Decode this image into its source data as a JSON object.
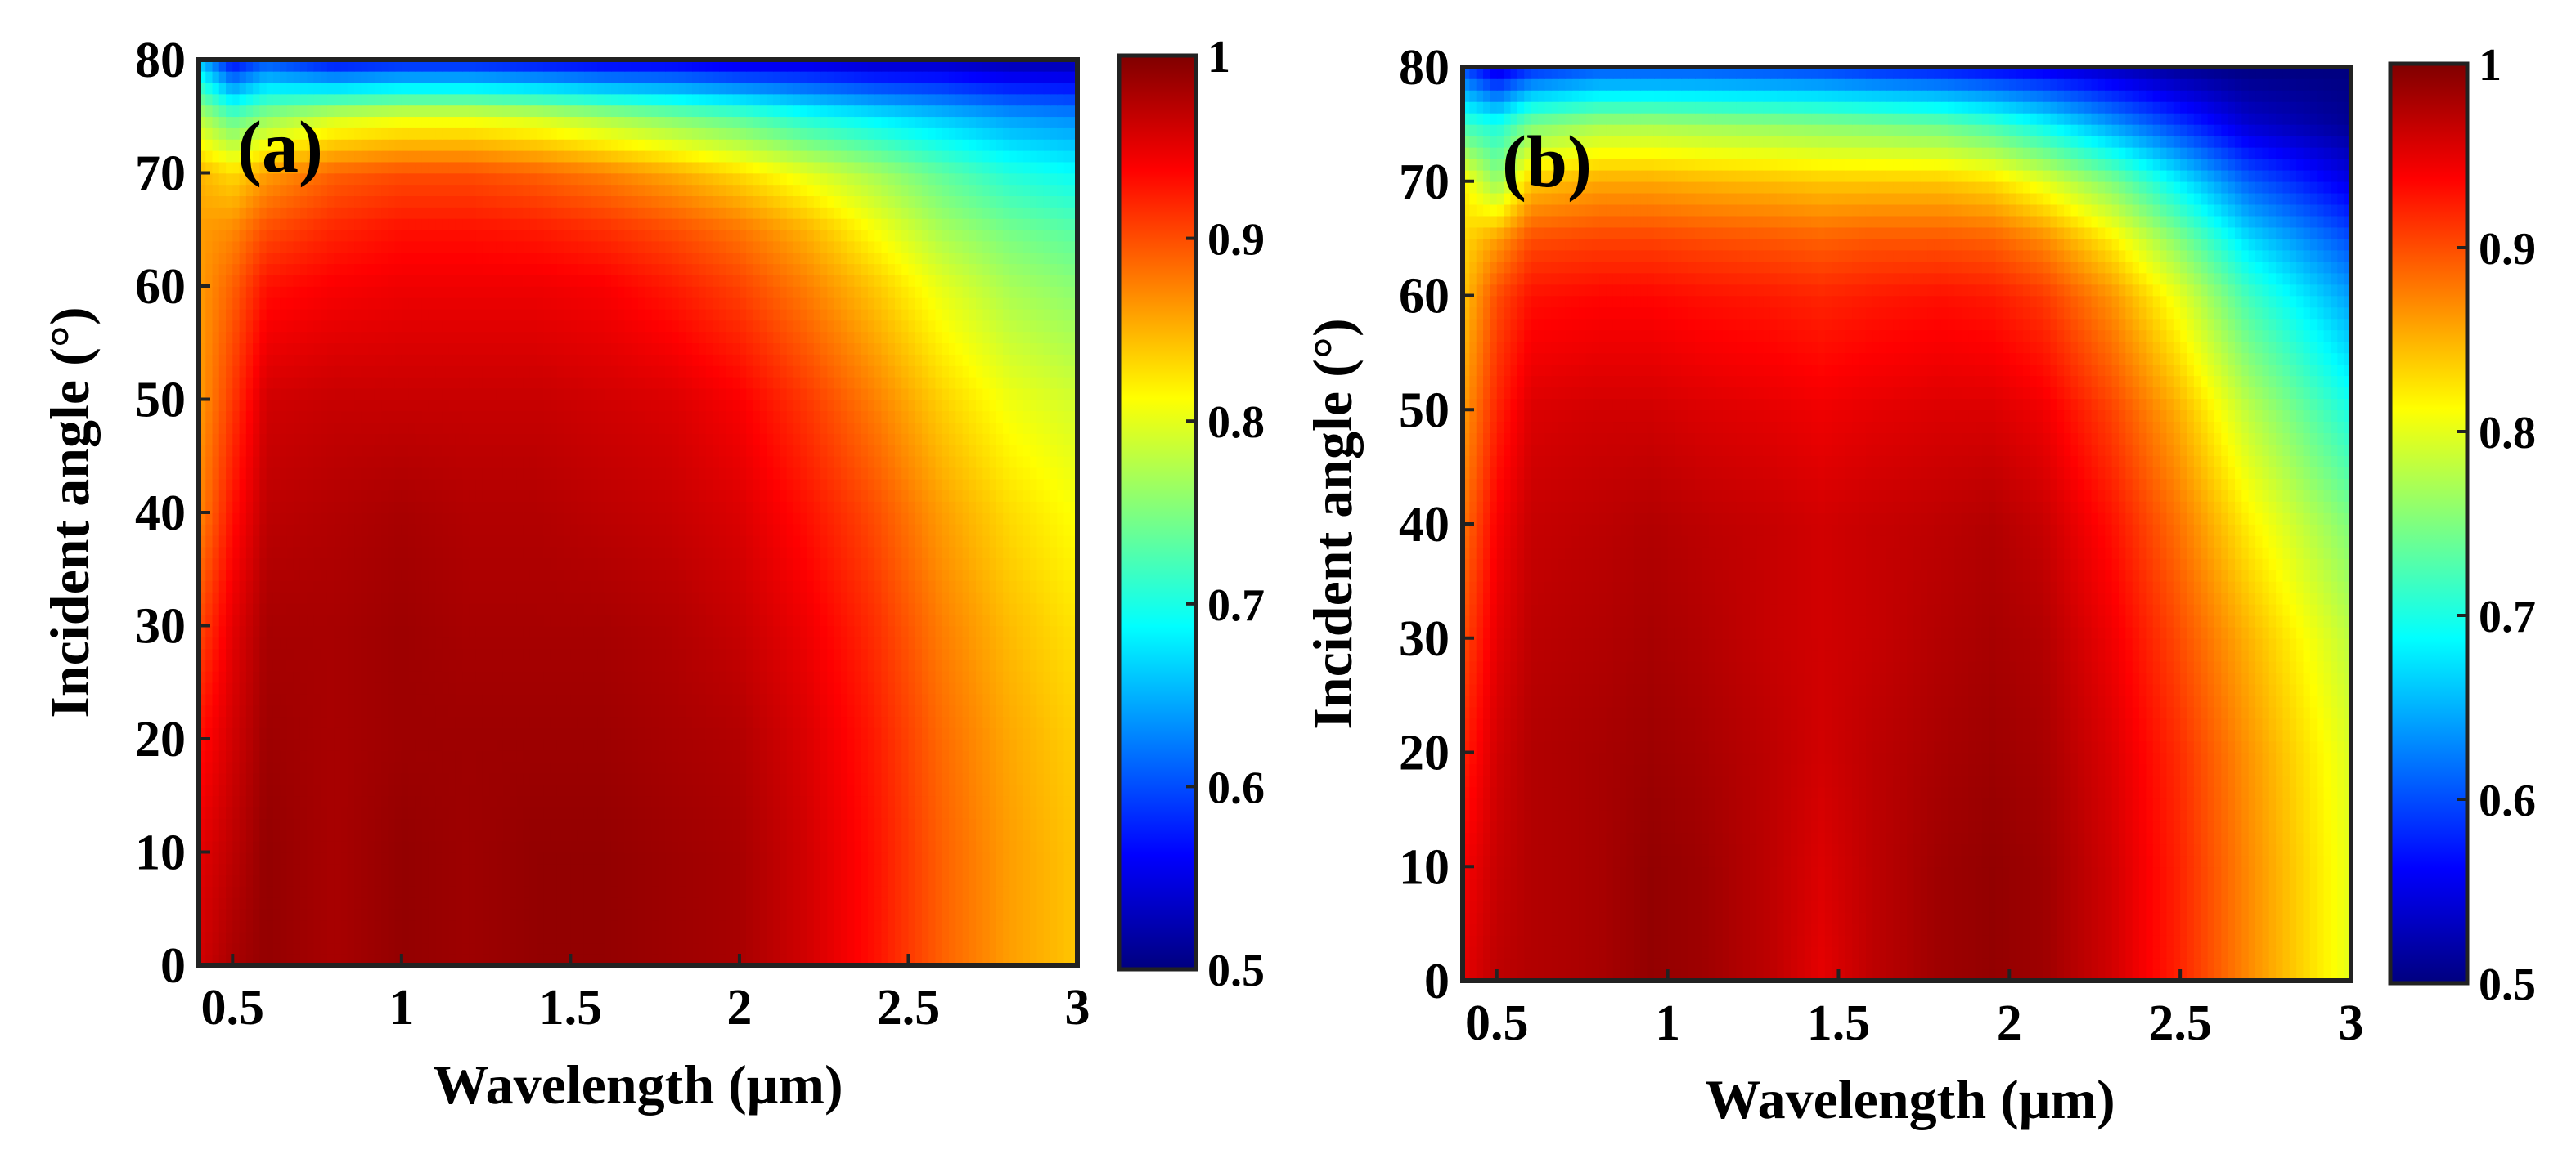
{
  "figure": {
    "colormap": [
      "#00007f",
      "#0000ff",
      "#007fff",
      "#00ffff",
      "#7fff7f",
      "#ffff00",
      "#ff7f00",
      "#ff0000",
      "#7f0000"
    ]
  },
  "chart_data": [
    {
      "type": "heatmap",
      "panel_label": "(a)",
      "title": "",
      "xlabel": "Wavelength (μm)",
      "ylabel": "Incident angle (°)",
      "xlim": [
        0.4,
        3
      ],
      "ylim": [
        0,
        80
      ],
      "xticks": [
        "0.5",
        "1",
        "1.5",
        "2",
        "2.5",
        "3"
      ],
      "xtick_values": [
        0.5,
        1,
        1.5,
        2,
        2.5,
        3
      ],
      "yticks": [
        "0",
        "10",
        "20",
        "30",
        "40",
        "50",
        "60",
        "70",
        "80"
      ],
      "ytick_values": [
        0,
        10,
        20,
        30,
        40,
        50,
        60,
        70,
        80
      ],
      "colorbar": {
        "ticks": [
          "0.5",
          "0.6",
          "0.7",
          "0.8",
          "0.9",
          "1"
        ],
        "tick_values": [
          0.5,
          0.6,
          0.7,
          0.8,
          0.9,
          1
        ],
        "range": [
          0.5,
          1
        ]
      },
      "x": [
        0.4,
        0.5,
        0.6,
        0.8,
        1.0,
        1.2,
        1.4,
        1.6,
        1.8,
        2.0,
        2.2,
        2.4,
        2.6,
        2.8,
        3.0
      ],
      "y": [
        0,
        10,
        20,
        30,
        40,
        50,
        60,
        65,
        70,
        75,
        80
      ],
      "z": [
        [
          0.96,
          0.98,
          0.99,
          0.98,
          0.99,
          0.985,
          0.99,
          0.99,
          0.985,
          0.98,
          0.96,
          0.93,
          0.89,
          0.86,
          0.84
        ],
        [
          0.95,
          0.97,
          0.99,
          0.98,
          0.99,
          0.985,
          0.99,
          0.99,
          0.985,
          0.98,
          0.96,
          0.93,
          0.89,
          0.86,
          0.84
        ],
        [
          0.93,
          0.96,
          0.985,
          0.98,
          0.985,
          0.985,
          0.985,
          0.985,
          0.98,
          0.975,
          0.955,
          0.925,
          0.885,
          0.855,
          0.835
        ],
        [
          0.9,
          0.95,
          0.98,
          0.98,
          0.985,
          0.98,
          0.98,
          0.98,
          0.975,
          0.965,
          0.945,
          0.915,
          0.875,
          0.845,
          0.825
        ],
        [
          0.87,
          0.93,
          0.97,
          0.975,
          0.98,
          0.975,
          0.975,
          0.97,
          0.965,
          0.955,
          0.93,
          0.9,
          0.86,
          0.83,
          0.81
        ],
        [
          0.86,
          0.91,
          0.96,
          0.965,
          0.965,
          0.965,
          0.965,
          0.96,
          0.955,
          0.94,
          0.91,
          0.875,
          0.835,
          0.805,
          0.79
        ],
        [
          0.86,
          0.89,
          0.93,
          0.94,
          0.945,
          0.945,
          0.945,
          0.94,
          0.925,
          0.905,
          0.875,
          0.84,
          0.8,
          0.77,
          0.755
        ],
        [
          0.86,
          0.87,
          0.9,
          0.92,
          0.93,
          0.93,
          0.925,
          0.915,
          0.9,
          0.88,
          0.85,
          0.81,
          0.77,
          0.745,
          0.73
        ],
        [
          0.85,
          0.83,
          0.86,
          0.89,
          0.9,
          0.9,
          0.89,
          0.875,
          0.855,
          0.83,
          0.8,
          0.77,
          0.735,
          0.705,
          0.69
        ],
        [
          0.78,
          0.73,
          0.76,
          0.79,
          0.8,
          0.8,
          0.79,
          0.77,
          0.75,
          0.73,
          0.7,
          0.68,
          0.66,
          0.64,
          0.63
        ],
        [
          0.66,
          0.56,
          0.6,
          0.56,
          0.57,
          0.57,
          0.56,
          0.55,
          0.55,
          0.54,
          0.54,
          0.53,
          0.53,
          0.52,
          0.52
        ]
      ]
    },
    {
      "type": "heatmap",
      "panel_label": "(b)",
      "title": "",
      "xlabel": "Wavelength (μm)",
      "ylabel": "Incident angle (°)",
      "xlim": [
        0.4,
        3
      ],
      "ylim": [
        0,
        80
      ],
      "xticks": [
        "0.5",
        "1",
        "1.5",
        "2",
        "2.5",
        "3"
      ],
      "xtick_values": [
        0.5,
        1,
        1.5,
        2,
        2.5,
        3
      ],
      "yticks": [
        "0",
        "10",
        "20",
        "30",
        "40",
        "50",
        "60",
        "70",
        "80"
      ],
      "ytick_values": [
        0,
        10,
        20,
        30,
        40,
        50,
        60,
        70,
        80
      ],
      "colorbar": {
        "ticks": [
          "0.5",
          "0.6",
          "0.7",
          "0.8",
          "0.9",
          "1"
        ],
        "tick_values": [
          0.5,
          0.6,
          0.7,
          0.8,
          0.9,
          1
        ],
        "range": [
          0.5,
          1
        ]
      },
      "x": [
        0.4,
        0.5,
        0.6,
        0.8,
        0.95,
        1.1,
        1.3,
        1.45,
        1.6,
        1.8,
        1.95,
        2.1,
        2.3,
        2.5,
        2.7,
        3.0
      ],
      "y": [
        0,
        10,
        20,
        30,
        40,
        50,
        60,
        65,
        70,
        75,
        80
      ],
      "z": [
        [
          0.95,
          0.97,
          0.975,
          0.98,
          0.99,
          0.985,
          0.97,
          0.95,
          0.97,
          0.985,
          0.99,
          0.985,
          0.96,
          0.92,
          0.87,
          0.8
        ],
        [
          0.94,
          0.965,
          0.975,
          0.98,
          0.99,
          0.985,
          0.97,
          0.955,
          0.97,
          0.985,
          0.99,
          0.985,
          0.96,
          0.92,
          0.87,
          0.8
        ],
        [
          0.92,
          0.96,
          0.975,
          0.98,
          0.985,
          0.98,
          0.97,
          0.96,
          0.97,
          0.98,
          0.985,
          0.98,
          0.955,
          0.915,
          0.865,
          0.795
        ],
        [
          0.9,
          0.95,
          0.97,
          0.975,
          0.98,
          0.975,
          0.965,
          0.96,
          0.965,
          0.975,
          0.98,
          0.975,
          0.945,
          0.9,
          0.85,
          0.78
        ],
        [
          0.88,
          0.94,
          0.965,
          0.97,
          0.975,
          0.97,
          0.965,
          0.96,
          0.965,
          0.97,
          0.975,
          0.965,
          0.93,
          0.88,
          0.82,
          0.75
        ],
        [
          0.86,
          0.92,
          0.955,
          0.96,
          0.96,
          0.955,
          0.95,
          0.945,
          0.95,
          0.955,
          0.955,
          0.945,
          0.905,
          0.85,
          0.78,
          0.7
        ],
        [
          0.84,
          0.9,
          0.93,
          0.935,
          0.935,
          0.93,
          0.925,
          0.92,
          0.925,
          0.93,
          0.925,
          0.91,
          0.865,
          0.8,
          0.72,
          0.64
        ],
        [
          0.83,
          0.86,
          0.9,
          0.905,
          0.905,
          0.9,
          0.895,
          0.89,
          0.895,
          0.895,
          0.89,
          0.87,
          0.82,
          0.75,
          0.67,
          0.6
        ],
        [
          0.82,
          0.76,
          0.84,
          0.855,
          0.855,
          0.85,
          0.845,
          0.84,
          0.84,
          0.84,
          0.83,
          0.8,
          0.75,
          0.68,
          0.61,
          0.55
        ],
        [
          0.72,
          0.7,
          0.75,
          0.77,
          0.77,
          0.765,
          0.76,
          0.755,
          0.75,
          0.74,
          0.72,
          0.69,
          0.64,
          0.59,
          0.54,
          0.51
        ],
        [
          0.6,
          0.54,
          0.58,
          0.6,
          0.6,
          0.6,
          0.595,
          0.59,
          0.58,
          0.57,
          0.56,
          0.55,
          0.53,
          0.51,
          0.5,
          0.5
        ]
      ]
    }
  ]
}
